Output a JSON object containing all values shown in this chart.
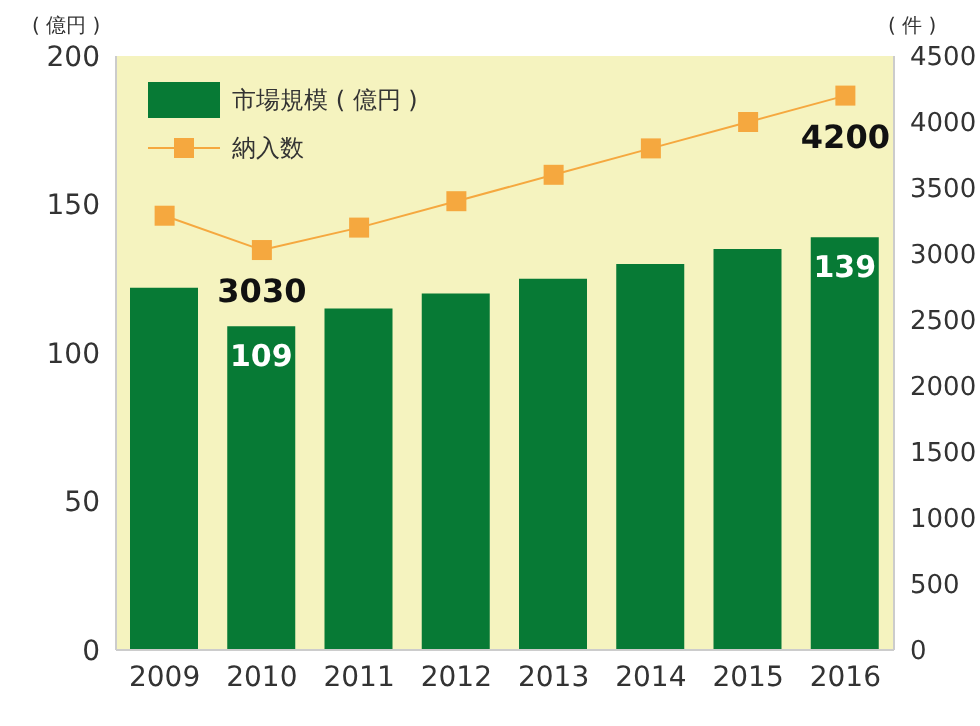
{
  "chart_data": {
    "type": "bar",
    "categories": [
      "2009",
      "2010",
      "2011",
      "2012",
      "2013",
      "2014",
      "2015",
      "2016"
    ],
    "ylabel": "( 億円 )",
    "y2label": "( 件 )",
    "series": [
      {
        "name": "市場規模 ( 億円 )",
        "color": "#077a35",
        "values": [
          122,
          109,
          115,
          120,
          125,
          130,
          135,
          139
        ],
        "value_labels": [
          null,
          "109",
          null,
          null,
          null,
          null,
          null,
          "139"
        ]
      },
      {
        "name": "納入数",
        "type": "line",
        "axis": "y2",
        "color": "#f5a83f",
        "marker": "square",
        "values": [
          3290,
          3030,
          3200,
          3400,
          3600,
          3800,
          4000,
          4200
        ],
        "value_labels": [
          null,
          "3030",
          null,
          null,
          null,
          null,
          null,
          "4200"
        ]
      }
    ],
    "ylim": [
      0,
      200
    ],
    "yticks": [
      0,
      50,
      100,
      150,
      200
    ],
    "y2lim": [
      0,
      4500
    ],
    "y2ticks": [
      0,
      500,
      1000,
      1500,
      2000,
      2500,
      3000,
      3500,
      4000,
      4500
    ],
    "grid": false,
    "legend": "top left"
  }
}
